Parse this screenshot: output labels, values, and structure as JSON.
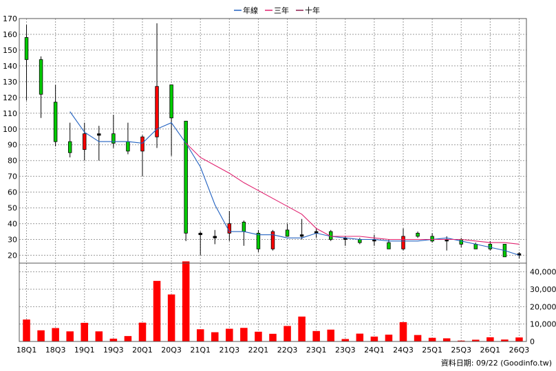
{
  "legend": [
    {
      "label": "年線",
      "color": "#2060c0"
    },
    {
      "label": "三年",
      "color": "#e0206e"
    },
    {
      "label": "十年",
      "color": "#8b1a4a"
    }
  ],
  "source_label": "資料日期: 09/22  (Goodinfo.tw)",
  "chart_data": [
    {
      "type": "candlestick",
      "ylim": [
        15,
        170
      ],
      "yticks": [
        20,
        30,
        40,
        50,
        60,
        70,
        80,
        90,
        100,
        110,
        120,
        130,
        140,
        150,
        160,
        170
      ],
      "xticks": [
        "18Q1",
        "18Q3",
        "19Q1",
        "19Q3",
        "20Q1",
        "20Q3",
        "21Q1",
        "21Q3",
        "22Q1",
        "22Q3",
        "23Q1",
        "23Q3",
        "24Q1",
        "24Q3",
        "25Q1",
        "25Q3",
        "26Q1",
        "26Q3"
      ],
      "periods": [
        "18Q1",
        "18Q2",
        "18Q3",
        "18Q4",
        "19Q1",
        "19Q2",
        "19Q3",
        "19Q4",
        "20Q1",
        "20Q2",
        "20Q3",
        "20Q4",
        "21Q1",
        "21Q2",
        "21Q3",
        "21Q4",
        "22Q1",
        "22Q2",
        "22Q3",
        "22Q4",
        "23Q1",
        "23Q2",
        "23Q3",
        "23Q4",
        "24Q1",
        "24Q2",
        "24Q3",
        "24Q4",
        "25Q1",
        "25Q2",
        "25Q3",
        "25Q4",
        "26Q1",
        "26Q2",
        "26Q3"
      ],
      "candles": [
        {
          "o": 158,
          "h": 166,
          "l": 118,
          "c": 144
        },
        {
          "o": 144,
          "h": 146,
          "l": 107,
          "c": 122
        },
        {
          "o": 117,
          "h": 128,
          "l": 89,
          "c": 92
        },
        {
          "o": 92,
          "h": 104,
          "l": 82,
          "c": 85
        },
        {
          "o": 87,
          "h": 104,
          "l": 80,
          "c": 97
        },
        {
          "o": 97,
          "h": 102,
          "l": 80,
          "c": 96
        },
        {
          "o": 97,
          "h": 109,
          "l": 88,
          "c": 91
        },
        {
          "o": 92,
          "h": 104,
          "l": 84,
          "c": 86
        },
        {
          "o": 86,
          "h": 96,
          "l": 70,
          "c": 95
        },
        {
          "o": 95,
          "h": 167,
          "l": 88,
          "c": 127
        },
        {
          "o": 128,
          "h": 128,
          "l": 83,
          "c": 107
        },
        {
          "o": 105,
          "h": 105,
          "l": 29,
          "c": 34
        },
        {
          "o": 34,
          "h": 35,
          "l": 20,
          "c": 33
        },
        {
          "o": 32,
          "h": 36,
          "l": 27,
          "c": 31
        },
        {
          "o": 34,
          "h": 48,
          "l": 29,
          "c": 40
        },
        {
          "o": 41,
          "h": 42,
          "l": 26,
          "c": 35
        },
        {
          "o": 34,
          "h": 36,
          "l": 22,
          "c": 24
        },
        {
          "o": 24,
          "h": 36,
          "l": 23,
          "c": 35
        },
        {
          "o": 36,
          "h": 40,
          "l": 32,
          "c": 32
        },
        {
          "o": 32,
          "h": 43,
          "l": 30,
          "c": 33
        },
        {
          "o": 34,
          "h": 37,
          "l": 31,
          "c": 35
        },
        {
          "o": 35,
          "h": 36,
          "l": 29,
          "c": 30
        },
        {
          "o": 31,
          "h": 32,
          "l": 26,
          "c": 30
        },
        {
          "o": 30,
          "h": 31,
          "l": 27,
          "c": 28
        },
        {
          "o": 30,
          "h": 33,
          "l": 26,
          "c": 29
        },
        {
          "o": 28,
          "h": 30,
          "l": 24,
          "c": 24
        },
        {
          "o": 24,
          "h": 37,
          "l": 23,
          "c": 32
        },
        {
          "o": 34,
          "h": 35,
          "l": 31,
          "c": 32
        },
        {
          "o": 32,
          "h": 34,
          "l": 28,
          "c": 29
        },
        {
          "o": 29,
          "h": 32,
          "l": 23,
          "c": 30
        },
        {
          "o": 30,
          "h": 31,
          "l": 25,
          "c": 27
        },
        {
          "o": 27,
          "h": 28,
          "l": 24,
          "c": 24
        },
        {
          "o": 27,
          "h": 29,
          "l": 23,
          "c": 24
        },
        {
          "o": 27,
          "h": 27,
          "l": 19,
          "c": 19
        },
        {
          "o": 21,
          "h": 22,
          "l": 18,
          "c": 20
        }
      ],
      "series": [
        {
          "name": "年線",
          "color": "#2060c0",
          "values": [
            null,
            null,
            null,
            111,
            98,
            92,
            92,
            92,
            91,
            100,
            104,
            91,
            76,
            52,
            35,
            35,
            33,
            33,
            31,
            31,
            34,
            32,
            31,
            30,
            30,
            29,
            29,
            29,
            30,
            31,
            29,
            27,
            25,
            23,
            20
          ]
        },
        {
          "name": "三年",
          "color": "#e0206e",
          "values": [
            null,
            null,
            null,
            null,
            null,
            null,
            null,
            null,
            null,
            null,
            null,
            91,
            82,
            77,
            72,
            66,
            61,
            56,
            51,
            46,
            37,
            32,
            32,
            32,
            31,
            30,
            30,
            30,
            30,
            30,
            30,
            29,
            28,
            28,
            27
          ]
        }
      ]
    },
    {
      "type": "bar",
      "ylim": [
        0,
        45000
      ],
      "yticks": [
        0,
        10000,
        20000,
        30000,
        40000
      ],
      "ytick_labels": [
        "0",
        "10,000",
        "20,000",
        "30,000",
        "40,000"
      ],
      "values": [
        12600,
        6400,
        7700,
        5800,
        10700,
        5800,
        1600,
        3100,
        10800,
        34800,
        27000,
        46000,
        7000,
        5300,
        7300,
        7800,
        5600,
        4400,
        8900,
        14300,
        6000,
        6800,
        1400,
        4500,
        2800,
        3900,
        11100,
        3700,
        2100,
        1800,
        500,
        1000,
        2400,
        1100,
        2300
      ]
    }
  ]
}
